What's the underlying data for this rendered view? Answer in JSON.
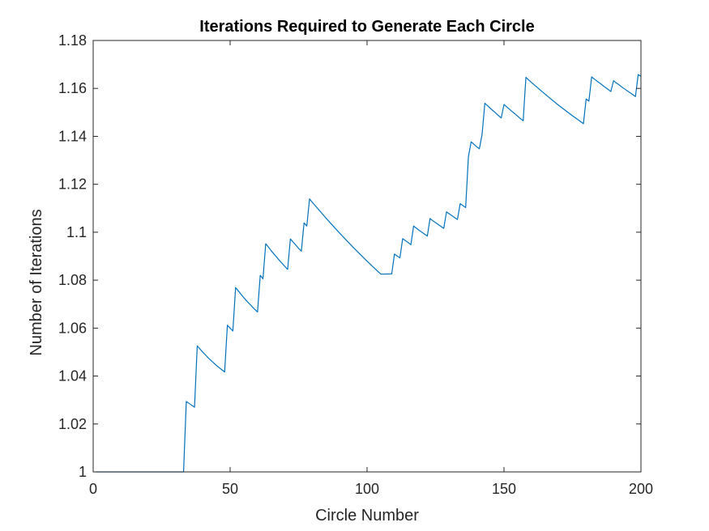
{
  "chart_data": {
    "type": "line",
    "title": "Iterations Required to Generate Each Circle",
    "xlabel": "Circle Number",
    "ylabel": "Number of Iterations",
    "xlim": [
      0,
      200
    ],
    "ylim": [
      1,
      1.18
    ],
    "xticks": [
      0,
      50,
      100,
      150,
      200
    ],
    "yticks": [
      1,
      1.02,
      1.04,
      1.06,
      1.08,
      1.1,
      1.12,
      1.14,
      1.16,
      1.18
    ],
    "ytick_labels": [
      "1",
      "1.02",
      "1.04",
      "1.06",
      "1.08",
      "1.1",
      "1.12",
      "1.14",
      "1.16",
      "1.18"
    ],
    "grid": false,
    "series": [
      {
        "color": "#0072BD",
        "points": [
          [
            1,
            1.0
          ],
          [
            33,
            1.0
          ],
          [
            34,
            1.0294
          ],
          [
            35,
            1.0286
          ],
          [
            36,
            1.0278
          ],
          [
            37,
            1.027
          ],
          [
            38,
            1.0526
          ],
          [
            39,
            1.0513
          ],
          [
            40,
            1.05
          ],
          [
            41,
            1.0488
          ],
          [
            42,
            1.0476
          ],
          [
            43,
            1.0465
          ],
          [
            44,
            1.0455
          ],
          [
            45,
            1.0444
          ],
          [
            46,
            1.0435
          ],
          [
            47,
            1.0426
          ],
          [
            48,
            1.0417
          ],
          [
            49,
            1.0612
          ],
          [
            50,
            1.06
          ],
          [
            51,
            1.0588
          ],
          [
            52,
            1.0769
          ],
          [
            53,
            1.0755
          ],
          [
            54,
            1.0741
          ],
          [
            55,
            1.0727
          ],
          [
            56,
            1.0714
          ],
          [
            57,
            1.0702
          ],
          [
            58,
            1.069
          ],
          [
            59,
            1.0678
          ],
          [
            60,
            1.0667
          ],
          [
            61,
            1.082
          ],
          [
            62,
            1.0806
          ],
          [
            63,
            1.0952
          ],
          [
            64,
            1.0938
          ],
          [
            65,
            1.0923
          ],
          [
            66,
            1.0909
          ],
          [
            67,
            1.0896
          ],
          [
            68,
            1.0882
          ],
          [
            69,
            1.087
          ],
          [
            70,
            1.0857
          ],
          [
            71,
            1.0845
          ],
          [
            72,
            1.0972
          ],
          [
            73,
            1.0959
          ],
          [
            74,
            1.0946
          ],
          [
            75,
            1.0933
          ],
          [
            76,
            1.0921
          ],
          [
            77,
            1.1039
          ],
          [
            78,
            1.1026
          ],
          [
            79,
            1.1139
          ],
          [
            80,
            1.1125
          ],
          [
            85,
            1.1059
          ],
          [
            90,
            1.0996
          ],
          [
            95,
            1.0936
          ],
          [
            100,
            1.0879
          ],
          [
            105,
            1.0825
          ],
          [
            109,
            1.0826
          ],
          [
            110,
            1.0909
          ],
          [
            111,
            1.0901
          ],
          [
            112,
            1.0893
          ],
          [
            113,
            1.0973
          ],
          [
            114,
            1.0965
          ],
          [
            115,
            1.0957
          ],
          [
            116,
            1.0948
          ],
          [
            117,
            1.1026
          ],
          [
            118,
            1.1017
          ],
          [
            119,
            1.1008
          ],
          [
            120,
            1.1
          ],
          [
            121,
            1.0992
          ],
          [
            122,
            1.0984
          ],
          [
            123,
            1.1057
          ],
          [
            124,
            1.1048
          ],
          [
            125,
            1.104
          ],
          [
            126,
            1.1032
          ],
          [
            127,
            1.1024
          ],
          [
            128,
            1.1016
          ],
          [
            129,
            1.1085
          ],
          [
            130,
            1.1077
          ],
          [
            131,
            1.1069
          ],
          [
            132,
            1.1061
          ],
          [
            133,
            1.1053
          ],
          [
            134,
            1.1119
          ],
          [
            135,
            1.1111
          ],
          [
            136,
            1.1103
          ],
          [
            137,
            1.1314
          ],
          [
            138,
            1.1377
          ],
          [
            139,
            1.1367
          ],
          [
            140,
            1.1357
          ],
          [
            141,
            1.1348
          ],
          [
            142,
            1.1408
          ],
          [
            143,
            1.1538
          ],
          [
            144,
            1.1528
          ],
          [
            145,
            1.1517
          ],
          [
            146,
            1.1507
          ],
          [
            147,
            1.1497
          ],
          [
            148,
            1.1486
          ],
          [
            149,
            1.1477
          ],
          [
            150,
            1.1533
          ],
          [
            151,
            1.1523
          ],
          [
            152,
            1.1513
          ],
          [
            153,
            1.1503
          ],
          [
            154,
            1.1494
          ],
          [
            155,
            1.1484
          ],
          [
            156,
            1.1474
          ],
          [
            157,
            1.1465
          ],
          [
            158,
            1.1646
          ],
          [
            160,
            1.1625
          ],
          [
            165,
            1.1576
          ],
          [
            170,
            1.1529
          ],
          [
            175,
            1.1486
          ],
          [
            179,
            1.1453
          ],
          [
            180,
            1.1556
          ],
          [
            181,
            1.1547
          ],
          [
            182,
            1.1648
          ],
          [
            183,
            1.1639
          ],
          [
            184,
            1.163
          ],
          [
            185,
            1.1622
          ],
          [
            186,
            1.1613
          ],
          [
            187,
            1.1604
          ],
          [
            188,
            1.1596
          ],
          [
            189,
            1.1587
          ],
          [
            190,
            1.1632
          ],
          [
            191,
            1.1623
          ],
          [
            192,
            1.1615
          ],
          [
            193,
            1.1606
          ],
          [
            194,
            1.1598
          ],
          [
            195,
            1.159
          ],
          [
            196,
            1.1582
          ],
          [
            197,
            1.1574
          ],
          [
            198,
            1.1566
          ],
          [
            199,
            1.1658
          ],
          [
            200,
            1.165
          ]
        ]
      }
    ]
  }
}
